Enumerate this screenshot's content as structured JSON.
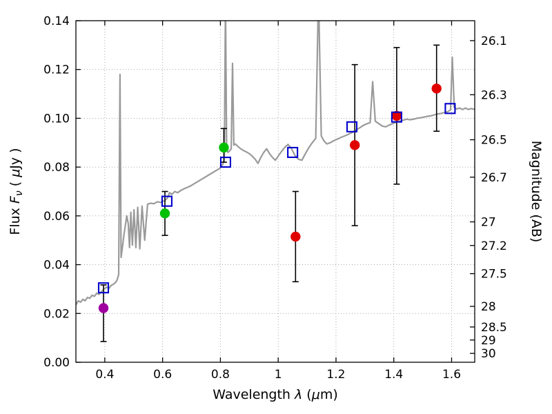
{
  "chart_data": {
    "type": "line+scatter",
    "title": "",
    "xlabel_parts": [
      {
        "t": "Wavelength  "
      },
      {
        "t": "λ",
        "i": true
      },
      {
        "t": " ("
      },
      {
        "t": "μ",
        "i": true
      },
      {
        "t": "m)"
      }
    ],
    "ylabel_left_parts": [
      {
        "t": "Flux  "
      },
      {
        "t": "F",
        "i": true
      },
      {
        "t": "ν",
        "i": true,
        "sub": true
      },
      {
        "t": " ( "
      },
      {
        "t": "μ",
        "i": true
      },
      {
        "t": "Jy )"
      }
    ],
    "ylabel_right": "Magnitude (AB)",
    "xlim": [
      0.3,
      1.68
    ],
    "ylim": [
      0.0,
      0.14
    ],
    "grid": true,
    "xticks": [
      0.4,
      0.6,
      0.8,
      1.0,
      1.2,
      1.4,
      1.6
    ],
    "xtick_labels": [
      "0.4",
      "0.6",
      "0.8",
      "1",
      "1.2",
      "1.4",
      "1.6"
    ],
    "yticks_left": [
      0.0,
      0.02,
      0.04,
      0.06,
      0.08,
      0.1,
      0.12,
      0.14
    ],
    "ytick_left_labels": [
      "0.00",
      "0.02",
      "0.04",
      "0.06",
      "0.08",
      "0.10",
      "0.12",
      "0.14"
    ],
    "yticks_right_mag": [
      26.1,
      26.3,
      26.5,
      26.7,
      27.0,
      27.2,
      27.5,
      28.0,
      28.5,
      29.0,
      30.0
    ],
    "ytick_right_labels": [
      "26.1",
      "26.3",
      "26.5",
      "26.7",
      "27",
      "27.2",
      "27.5",
      "28",
      "28.5",
      "29",
      "30"
    ],
    "mag_zeropoint": 23.9,
    "colors": {
      "frame": "#000000",
      "grid": "#9a9a9a",
      "spectrum": "#9a9a9a",
      "error_bar": "#000000",
      "model_square": "#0000cc",
      "point_magenta": "#a000a0",
      "point_green": "#00c000",
      "point_red": "#e00000"
    },
    "spectrum": {
      "name": "model-spectrum",
      "color": "#9a9a9a",
      "points": [
        [
          0.3,
          0.0235
        ],
        [
          0.308,
          0.0252
        ],
        [
          0.316,
          0.0246
        ],
        [
          0.324,
          0.0258
        ],
        [
          0.332,
          0.0252
        ],
        [
          0.34,
          0.0266
        ],
        [
          0.348,
          0.0262
        ],
        [
          0.356,
          0.0275
        ],
        [
          0.364,
          0.027
        ],
        [
          0.372,
          0.0283
        ],
        [
          0.38,
          0.0278
        ],
        [
          0.39,
          0.0292
        ],
        [
          0.398,
          0.03
        ],
        [
          0.406,
          0.0308
        ],
        [
          0.414,
          0.0302
        ],
        [
          0.422,
          0.0315
        ],
        [
          0.43,
          0.032
        ],
        [
          0.438,
          0.0328
        ],
        [
          0.4435,
          0.034
        ],
        [
          0.448,
          0.036
        ],
        [
          0.4525,
          0.118
        ],
        [
          0.4565,
          0.043
        ],
        [
          0.461,
          0.047
        ],
        [
          0.466,
          0.052
        ],
        [
          0.471,
          0.056
        ],
        [
          0.476,
          0.06
        ],
        [
          0.481,
          0.057
        ],
        [
          0.4855,
          0.047
        ],
        [
          0.49,
          0.0615
        ],
        [
          0.4955,
          0.048
        ],
        [
          0.501,
          0.0625
        ],
        [
          0.5075,
          0.047
        ],
        [
          0.514,
          0.0635
        ],
        [
          0.521,
          0.0465
        ],
        [
          0.529,
          0.064
        ],
        [
          0.538,
          0.05
        ],
        [
          0.548,
          0.0648
        ],
        [
          0.558,
          0.0652
        ],
        [
          0.57,
          0.065
        ],
        [
          0.582,
          0.0658
        ],
        [
          0.594,
          0.0655
        ],
        [
          0.606,
          0.0662
        ],
        [
          0.616,
          0.0672
        ],
        [
          0.624,
          0.0695
        ],
        [
          0.632,
          0.0688
        ],
        [
          0.642,
          0.07
        ],
        [
          0.652,
          0.0695
        ],
        [
          0.664,
          0.0705
        ],
        [
          0.676,
          0.0712
        ],
        [
          0.688,
          0.0718
        ],
        [
          0.7,
          0.0725
        ],
        [
          0.714,
          0.0735
        ],
        [
          0.728,
          0.0745
        ],
        [
          0.742,
          0.0755
        ],
        [
          0.756,
          0.0765
        ],
        [
          0.77,
          0.0775
        ],
        [
          0.784,
          0.0785
        ],
        [
          0.798,
          0.0795
        ],
        [
          0.808,
          0.081
        ],
        [
          0.8135,
          0.083
        ],
        [
          0.8175,
          0.149
        ],
        [
          0.8215,
          0.088
        ],
        [
          0.826,
          0.086
        ],
        [
          0.831,
          0.0865
        ],
        [
          0.8375,
          0.0875
        ],
        [
          0.842,
          0.1225
        ],
        [
          0.8465,
          0.089
        ],
        [
          0.852,
          0.0895
        ],
        [
          0.86,
          0.0885
        ],
        [
          0.87,
          0.0875
        ],
        [
          0.88,
          0.0868
        ],
        [
          0.89,
          0.0862
        ],
        [
          0.9,
          0.0855
        ],
        [
          0.91,
          0.0845
        ],
        [
          0.92,
          0.0832
        ],
        [
          0.93,
          0.0815
        ],
        [
          0.94,
          0.084
        ],
        [
          0.95,
          0.086
        ],
        [
          0.96,
          0.0875
        ],
        [
          0.97,
          0.0855
        ],
        [
          0.98,
          0.084
        ],
        [
          0.99,
          0.0828
        ],
        [
          1.0,
          0.0845
        ],
        [
          1.01,
          0.0862
        ],
        [
          1.022,
          0.088
        ],
        [
          1.034,
          0.0893
        ],
        [
          1.046,
          0.0875
        ],
        [
          1.058,
          0.0848
        ],
        [
          1.07,
          0.0832
        ],
        [
          1.082,
          0.0828
        ],
        [
          1.094,
          0.0855
        ],
        [
          1.106,
          0.088
        ],
        [
          1.118,
          0.09
        ],
        [
          1.13,
          0.0918
        ],
        [
          1.1395,
          0.152
        ],
        [
          1.149,
          0.0928
        ],
        [
          1.158,
          0.0908
        ],
        [
          1.168,
          0.0895
        ],
        [
          1.18,
          0.09
        ],
        [
          1.192,
          0.0908
        ],
        [
          1.205,
          0.0915
        ],
        [
          1.218,
          0.0922
        ],
        [
          1.231,
          0.0928
        ],
        [
          1.244,
          0.0935
        ],
        [
          1.257,
          0.0942
        ],
        [
          1.27,
          0.0952
        ],
        [
          1.283,
          0.0962
        ],
        [
          1.296,
          0.0972
        ],
        [
          1.308,
          0.0978
        ],
        [
          1.318,
          0.0982
        ],
        [
          1.327,
          0.115
        ],
        [
          1.336,
          0.0988
        ],
        [
          1.348,
          0.0978
        ],
        [
          1.36,
          0.0968
        ],
        [
          1.372,
          0.0965
        ],
        [
          1.384,
          0.0972
        ],
        [
          1.396,
          0.0978
        ],
        [
          1.408,
          0.0984
        ],
        [
          1.42,
          0.0988
        ],
        [
          1.432,
          0.0992
        ],
        [
          1.444,
          0.0996
        ],
        [
          1.456,
          0.0994
        ],
        [
          1.468,
          0.0996
        ],
        [
          1.48,
          0.1
        ],
        [
          1.492,
          0.1002
        ],
        [
          1.504,
          0.1005
        ],
        [
          1.516,
          0.1008
        ],
        [
          1.528,
          0.101
        ],
        [
          1.54,
          0.1014
        ],
        [
          1.552,
          0.1018
        ],
        [
          1.564,
          0.102
        ],
        [
          1.576,
          0.1024
        ],
        [
          1.588,
          0.1028
        ],
        [
          1.5965,
          0.1035
        ],
        [
          1.6025,
          0.125
        ],
        [
          1.609,
          0.1045
        ],
        [
          1.618,
          0.1038
        ],
        [
          1.628,
          0.1042
        ],
        [
          1.638,
          0.1036
        ],
        [
          1.648,
          0.1042
        ],
        [
          1.658,
          0.1036
        ],
        [
          1.668,
          0.104
        ],
        [
          1.68,
          0.1036
        ]
      ]
    },
    "model_photometry": {
      "name": "model-photometry",
      "marker": "open-square",
      "color": "#0000cc",
      "points": [
        [
          0.3955,
          0.0305
        ],
        [
          0.615,
          0.066
        ],
        [
          0.818,
          0.082
        ],
        [
          1.05,
          0.086
        ],
        [
          1.255,
          0.0965
        ],
        [
          1.41,
          0.1005
        ],
        [
          1.595,
          0.104
        ]
      ]
    },
    "observed_photometry": [
      {
        "x": 0.3955,
        "y": 0.0222,
        "err_plus": 0.0095,
        "err_minus": 0.0137,
        "color": "#a000a0"
      },
      {
        "x": 0.608,
        "y": 0.061,
        "err_plus": 0.009,
        "err_minus": 0.009,
        "color": "#00c000"
      },
      {
        "x": 0.812,
        "y": 0.088,
        "err_plus": 0.0078,
        "err_minus": 0.006,
        "color": "#00c000"
      },
      {
        "x": 1.06,
        "y": 0.0515,
        "err_plus": 0.0185,
        "err_minus": 0.0185,
        "color": "#e00000"
      },
      {
        "x": 1.265,
        "y": 0.089,
        "err_plus": 0.033,
        "err_minus": 0.033,
        "color": "#e00000"
      },
      {
        "x": 1.41,
        "y": 0.101,
        "err_plus": 0.028,
        "err_minus": 0.028,
        "color": "#e00000"
      },
      {
        "x": 1.548,
        "y": 0.1122,
        "err_plus": 0.0178,
        "err_minus": 0.0175,
        "color": "#e00000"
      }
    ]
  }
}
